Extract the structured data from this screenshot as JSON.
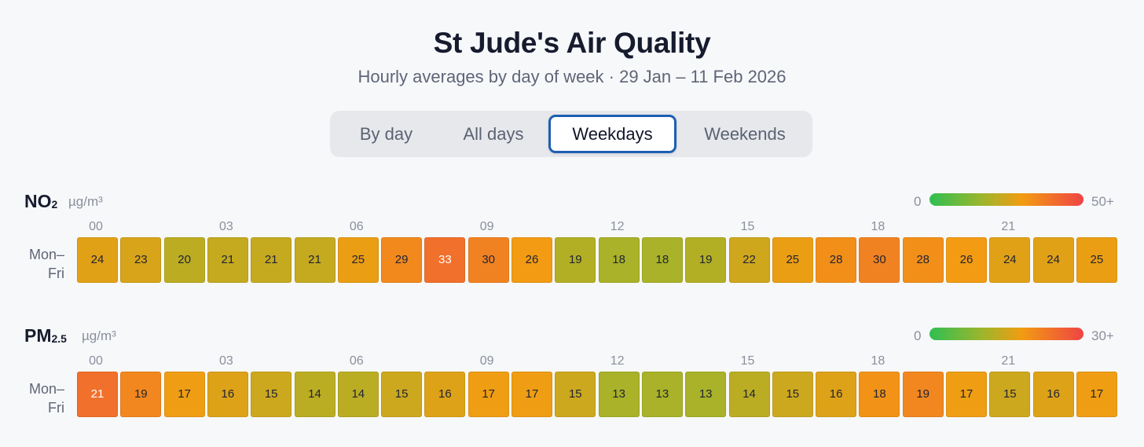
{
  "header": {
    "title": "St Jude's Air Quality",
    "subtitle": "Hourly averages by day of week · 29 Jan – 11 Feb 2026"
  },
  "tabs": [
    {
      "label": "By day",
      "active": false
    },
    {
      "label": "All days",
      "active": false
    },
    {
      "label": "Weekdays",
      "active": true
    },
    {
      "label": "Weekends",
      "active": false
    }
  ],
  "colors": {
    "low": "#2fbf52",
    "mid": "#f29c12",
    "high": "#ef4444",
    "active_tab_border": "#1d5fb3"
  },
  "chart_data": [
    {
      "type": "heatmap",
      "pollutant": "NO",
      "pollutant_sub": "2",
      "unit": "µg/m³",
      "scale_min_label": "0",
      "scale_max_label": "50+",
      "scale_max": 50,
      "hour_labels": [
        "00",
        "03",
        "06",
        "09",
        "12",
        "15",
        "18",
        "21"
      ],
      "row_label": "Mon–\nFri",
      "values": [
        24,
        23,
        20,
        21,
        21,
        21,
        25,
        29,
        33,
        30,
        26,
        19,
        18,
        18,
        19,
        22,
        25,
        28,
        30,
        28,
        26,
        24,
        24,
        25
      ]
    },
    {
      "type": "heatmap",
      "pollutant": "PM",
      "pollutant_sub": "2.5",
      "unit": "µg/m³",
      "scale_min_label": "0",
      "scale_max_label": "30+",
      "scale_max": 30,
      "hour_labels": [
        "00",
        "03",
        "06",
        "09",
        "12",
        "15",
        "18",
        "21"
      ],
      "row_label": "Mon–\nFri",
      "values": [
        21,
        19,
        17,
        16,
        15,
        14,
        14,
        15,
        16,
        17,
        17,
        15,
        13,
        13,
        13,
        14,
        15,
        16,
        18,
        19,
        17,
        15,
        16,
        17
      ]
    }
  ]
}
